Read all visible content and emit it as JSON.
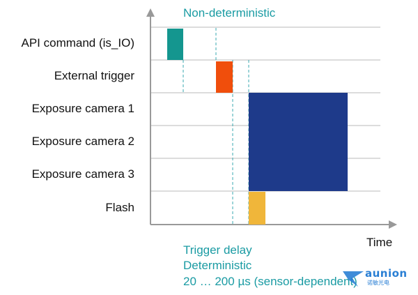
{
  "header": {
    "non_deterministic": "Non-deterministic"
  },
  "rows": [
    {
      "label": "API command (is_IO)"
    },
    {
      "label": "External trigger"
    },
    {
      "label": "Exposure camera 1"
    },
    {
      "label": "Exposure camera 2"
    },
    {
      "label": "Exposure camera 3"
    },
    {
      "label": "Flash"
    }
  ],
  "x_axis": {
    "label": "Time"
  },
  "footer": {
    "line1": "Trigger delay",
    "line2": "Deterministic",
    "line3": "20 … 200 µs (sensor-dependent)"
  },
  "logo": {
    "name": "aunion",
    "subtext": "诺敏光电"
  },
  "colors": {
    "teal_text": "#1a9ba3",
    "api_pulse": "#14968f",
    "trigger_pulse": "#f04e0c",
    "exposure_block": "#1e3a8a",
    "flash_pulse": "#f0b63a",
    "dashed_lines": "#3aa8b0"
  }
}
